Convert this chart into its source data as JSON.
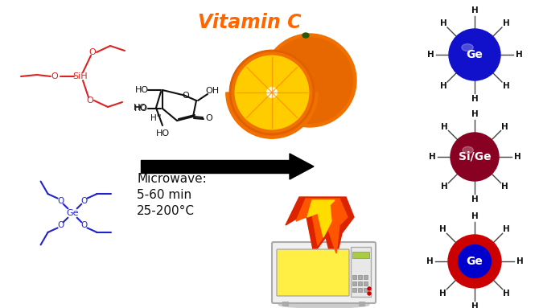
{
  "bg_color": "#ffffff",
  "si_color": "#dd2222",
  "ge_color": "#2222cc",
  "mc_color": "#111111",
  "vitamin_c_color": "#ff6600",
  "arrow_color": "#111111",
  "microwave_text_line1": "Microwave:",
  "microwave_text_line2": "5-60 min",
  "microwave_text_line3": "25-200°C",
  "H_color": "#111111",
  "H_line_color": "#444444",
  "ge1_color": "#1111cc",
  "sige_color": "#880022",
  "ge_shell_color": "#cc0000",
  "ge_core_color": "#0000cc"
}
